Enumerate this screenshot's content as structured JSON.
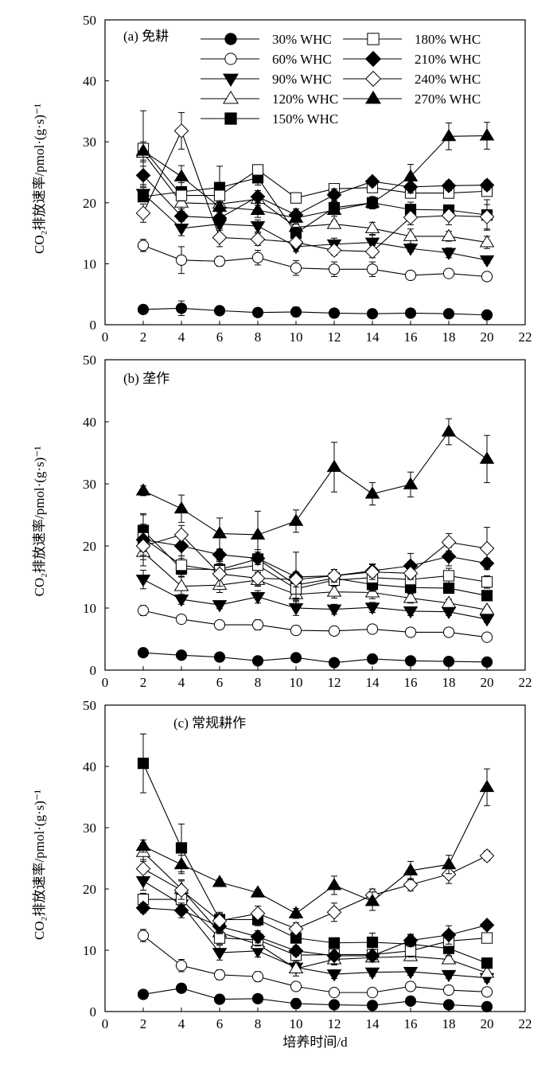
{
  "figure": {
    "xlabel": "培养时间/d",
    "ylabel": "CO₂排放速率/pmol·(g·s)⁻¹",
    "x_ticks": [
      0,
      2,
      4,
      6,
      8,
      10,
      12,
      14,
      16,
      18,
      20,
      22
    ],
    "y_ticks": [
      0,
      10,
      20,
      30,
      40,
      50
    ]
  },
  "legend": [
    {
      "name": "30% WHC",
      "marker": "circle",
      "fill": "filled"
    },
    {
      "name": "60% WHC",
      "marker": "circle",
      "fill": "open"
    },
    {
      "name": "90% WHC",
      "marker": "triangle-down",
      "fill": "filled"
    },
    {
      "name": "120% WHC",
      "marker": "triangle-up",
      "fill": "open"
    },
    {
      "name": "150% WHC",
      "marker": "square",
      "fill": "filled"
    },
    {
      "name": "180% WHC",
      "marker": "square",
      "fill": "open"
    },
    {
      "name": "210% WHC",
      "marker": "diamond",
      "fill": "filled"
    },
    {
      "name": "240% WHC",
      "marker": "diamond",
      "fill": "open"
    },
    {
      "name": "270% WHC",
      "marker": "triangle-up",
      "fill": "filled"
    }
  ],
  "chart_data": [
    {
      "type": "line",
      "title": "(a) 免耕",
      "xlabel": "",
      "ylabel": "CO₂排放速率/pmol·(g·s)⁻¹",
      "xlim": [
        0,
        22
      ],
      "ylim": [
        0,
        50
      ],
      "x": [
        2,
        4,
        6,
        8,
        10,
        12,
        14,
        16,
        18,
        20
      ],
      "series": [
        {
          "name": "30% WHC",
          "values": [
            2.5,
            2.7,
            2.3,
            2.0,
            2.1,
            1.9,
            1.8,
            1.9,
            1.8,
            1.6
          ],
          "err": [
            0.3,
            1.2,
            0.4,
            0.3,
            0.8,
            0.3,
            0.3,
            0.5,
            0.3,
            0.3
          ]
        },
        {
          "name": "60% WHC",
          "values": [
            13.0,
            10.6,
            10.4,
            11.0,
            9.3,
            9.1,
            9.1,
            8.1,
            8.4,
            7.9
          ],
          "err": [
            1.0,
            2.2,
            0.8,
            1.2,
            1.2,
            1.2,
            1.2,
            0.5,
            0.5,
            0.3
          ]
        },
        {
          "name": "90% WHC",
          "values": [
            21.5,
            15.8,
            16.5,
            16.2,
            12.8,
            13.2,
            13.5,
            12.5,
            11.8,
            10.6
          ],
          "err": [
            1.0,
            1.2,
            1.0,
            1.0,
            0.8,
            1.0,
            1.2,
            0.5,
            0.8,
            0.5
          ]
        },
        {
          "name": "120% WHC",
          "values": [
            28.2,
            20.0,
            19.8,
            20.6,
            16.0,
            16.5,
            15.8,
            14.5,
            14.5,
            13.5
          ],
          "err": [
            1.5,
            1.0,
            1.0,
            1.0,
            1.0,
            0.5,
            1.0,
            1.2,
            0.8,
            1.0
          ]
        },
        {
          "name": "150% WHC",
          "values": [
            21.0,
            21.8,
            22.5,
            24.1,
            15.0,
            19.2,
            20.0,
            18.9,
            18.8,
            18.0
          ],
          "err": [
            0.8,
            1.5,
            3.5,
            1.2,
            1.0,
            1.0,
            1.0,
            1.2,
            0.8,
            2.5
          ]
        },
        {
          "name": "180% WHC",
          "values": [
            28.9,
            21.2,
            21.2,
            25.4,
            20.8,
            22.3,
            22.5,
            21.6,
            21.6,
            21.9
          ],
          "err": [
            6.2,
            0.8,
            1.2,
            0.7,
            0.8,
            0.7,
            0.8,
            0.7,
            0.7,
            0.8
          ]
        },
        {
          "name": "210% WHC",
          "values": [
            24.5,
            17.8,
            17.5,
            21.0,
            18.0,
            21.3,
            23.5,
            22.6,
            22.8,
            22.9
          ],
          "err": [
            1.5,
            0.8,
            1.0,
            1.0,
            1.0,
            1.0,
            0.7,
            1.0,
            0.8,
            0.8
          ]
        },
        {
          "name": "240% WHC",
          "values": [
            18.3,
            31.8,
            14.3,
            14.0,
            13.5,
            12.2,
            12.0,
            17.6,
            17.9,
            17.7
          ],
          "err": [
            1.5,
            3.0,
            1.5,
            1.0,
            0.8,
            0.8,
            1.0,
            1.2,
            1.5,
            2.0
          ]
        },
        {
          "name": "270% WHC",
          "values": [
            28.5,
            24.3,
            19.3,
            18.8,
            17.5,
            18.8,
            20.0,
            24.3,
            30.9,
            31.0
          ],
          "err": [
            1.5,
            1.8,
            0.8,
            1.2,
            1.0,
            1.0,
            1.0,
            2.0,
            2.2,
            2.2
          ]
        }
      ]
    },
    {
      "type": "line",
      "title": "(b) 垄作",
      "xlabel": "",
      "ylabel": "CO₂排放速率/pmol·(g·s)⁻¹",
      "xlim": [
        0,
        22
      ],
      "ylim": [
        0,
        50
      ],
      "x": [
        2,
        4,
        6,
        8,
        10,
        12,
        14,
        16,
        18,
        20
      ],
      "series": [
        {
          "name": "30% WHC",
          "values": [
            2.8,
            2.4,
            2.1,
            1.5,
            2.0,
            1.2,
            1.8,
            1.5,
            1.4,
            1.3
          ],
          "err": [
            0.4,
            0.4,
            0.6,
            0.3,
            0.3,
            0.3,
            0.3,
            0.2,
            0.3,
            0.2
          ]
        },
        {
          "name": "60% WHC",
          "values": [
            9.6,
            8.2,
            7.3,
            7.3,
            6.4,
            6.3,
            6.6,
            6.1,
            6.1,
            5.3
          ],
          "err": [
            0.8,
            0.4,
            0.6,
            0.8,
            0.3,
            0.5,
            0.4,
            0.6,
            0.5,
            0.5
          ]
        },
        {
          "name": "90% WHC",
          "values": [
            14.6,
            11.4,
            10.5,
            11.8,
            10.0,
            9.8,
            10.1,
            9.5,
            9.4,
            8.2
          ],
          "err": [
            1.5,
            0.8,
            0.6,
            1.0,
            1.2,
            0.8,
            0.8,
            0.7,
            0.6,
            0.5
          ]
        },
        {
          "name": "120% WHC",
          "values": [
            19.0,
            13.5,
            13.7,
            14.5,
            12.2,
            12.6,
            12.5,
            11.6,
            10.8,
            9.7
          ],
          "err": [
            1.2,
            1.5,
            1.2,
            1.0,
            0.8,
            1.0,
            1.0,
            0.8,
            0.6,
            0.5
          ]
        },
        {
          "name": "150% WHC",
          "values": [
            22.5,
            16.3,
            16.2,
            17.9,
            13.7,
            14.8,
            13.8,
            13.3,
            13.2,
            12.0
          ],
          "err": [
            2.5,
            1.2,
            1.5,
            1.5,
            1.2,
            1.0,
            1.0,
            1.0,
            0.8,
            0.8
          ]
        },
        {
          "name": "180% WHC",
          "values": [
            21.3,
            16.9,
            16.0,
            16.9,
            13.1,
            14.5,
            14.9,
            14.6,
            15.2,
            14.2
          ],
          "err": [
            2.2,
            1.5,
            1.2,
            1.2,
            1.5,
            1.0,
            2.2,
            1.5,
            1.2,
            1.0
          ]
        },
        {
          "name": "210% WHC",
          "values": [
            21.0,
            20.0,
            18.6,
            18.0,
            15.0,
            15.2,
            16.0,
            16.8,
            18.3,
            17.2
          ],
          "err": [
            4.2,
            2.0,
            0.8,
            1.0,
            4.0,
            1.0,
            1.0,
            2.0,
            1.5,
            0.8
          ]
        },
        {
          "name": "240% WHC",
          "values": [
            20.0,
            21.8,
            15.5,
            14.8,
            14.6,
            15.2,
            15.8,
            15.6,
            20.6,
            19.6
          ],
          "err": [
            1.5,
            1.5,
            2.0,
            1.2,
            1.2,
            1.0,
            1.2,
            1.0,
            1.4,
            3.4
          ]
        },
        {
          "name": "270% WHC",
          "values": [
            28.9,
            26.0,
            22.0,
            21.8,
            24.0,
            32.7,
            28.4,
            29.9,
            38.4,
            34.0
          ],
          "err": [
            0.8,
            2.2,
            2.5,
            3.8,
            1.8,
            4.0,
            1.8,
            2.0,
            2.1,
            3.8
          ]
        }
      ]
    },
    {
      "type": "line",
      "title": "(c) 常规耕作",
      "xlabel": "培养时间/d",
      "ylabel": "CO₂排放速率/pmol·(g·s)⁻¹",
      "xlim": [
        0,
        22
      ],
      "ylim": [
        0,
        50
      ],
      "x": [
        2,
        4,
        6,
        8,
        10,
        12,
        14,
        16,
        18,
        20
      ],
      "series": [
        {
          "name": "30% WHC",
          "values": [
            2.8,
            3.8,
            2.0,
            2.1,
            1.3,
            1.1,
            1.0,
            1.7,
            1.1,
            0.8
          ],
          "err": [
            0.3,
            0.7,
            0.3,
            0.5,
            0.8,
            0.3,
            0.3,
            0.4,
            0.3,
            0.3
          ]
        },
        {
          "name": "60% WHC",
          "values": [
            12.4,
            7.5,
            6.0,
            5.7,
            4.1,
            3.1,
            3.1,
            4.1,
            3.5,
            3.2
          ],
          "err": [
            1.0,
            1.0,
            0.8,
            0.8,
            0.5,
            0.3,
            0.3,
            0.6,
            0.4,
            0.4
          ]
        },
        {
          "name": "90% WHC",
          "values": [
            21.3,
            17.5,
            9.6,
            9.9,
            7.2,
            6.1,
            6.4,
            6.5,
            6.0,
            5.5
          ],
          "err": [
            1.5,
            1.2,
            1.2,
            1.0,
            0.8,
            0.7,
            0.6,
            0.6,
            0.6,
            0.7
          ]
        },
        {
          "name": "120% WHC",
          "values": [
            26.0,
            20.0,
            12.9,
            11.0,
            7.0,
            8.5,
            8.8,
            9.0,
            8.5,
            6.3
          ],
          "err": [
            1.5,
            1.5,
            1.2,
            1.2,
            1.2,
            0.8,
            0.7,
            0.7,
            0.5,
            1.0
          ]
        },
        {
          "name": "150% WHC",
          "values": [
            40.5,
            26.7,
            15.0,
            15.0,
            12.0,
            11.2,
            11.3,
            11.0,
            10.3,
            7.9
          ],
          "err": [
            4.8,
            3.9,
            1.2,
            1.0,
            0.8,
            0.8,
            1.5,
            1.5,
            1.2,
            0.5
          ]
        },
        {
          "name": "180% WHC",
          "values": [
            18.3,
            18.3,
            12.0,
            11.7,
            9.2,
            9.3,
            9.3,
            9.9,
            11.5,
            12.0
          ],
          "err": [
            1.0,
            0.8,
            1.0,
            1.0,
            0.8,
            0.7,
            0.7,
            1.0,
            0.8,
            0.8
          ]
        },
        {
          "name": "210% WHC",
          "values": [
            16.9,
            16.5,
            13.9,
            12.2,
            9.9,
            9.1,
            9.1,
            11.6,
            12.5,
            14.1
          ],
          "err": [
            0.8,
            1.2,
            1.2,
            1.0,
            0.8,
            1.5,
            1.0,
            1.0,
            1.5,
            0.5
          ]
        },
        {
          "name": "240% WHC",
          "values": [
            23.3,
            19.8,
            14.8,
            16.0,
            13.5,
            16.2,
            19.0,
            20.7,
            22.4,
            25.4
          ],
          "err": [
            1.5,
            1.5,
            1.2,
            1.2,
            1.0,
            1.5,
            1.0,
            1.0,
            1.5,
            0.8
          ]
        },
        {
          "name": "270% WHC",
          "values": [
            27.0,
            24.0,
            21.1,
            19.4,
            16.0,
            20.6,
            18.0,
            23.0,
            24.0,
            36.6
          ],
          "err": [
            1.0,
            1.5,
            0.5,
            0.5,
            0.8,
            1.5,
            1.5,
            1.5,
            1.5,
            3.0
          ]
        }
      ]
    }
  ]
}
